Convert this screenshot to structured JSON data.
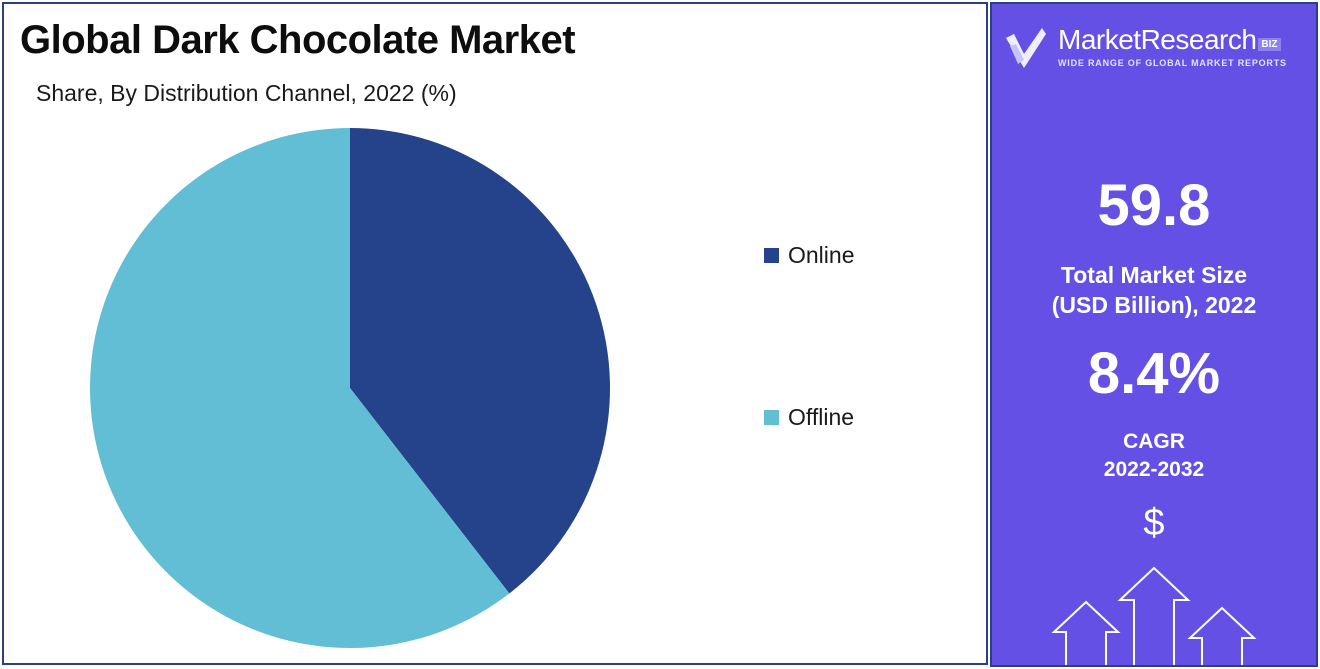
{
  "header": {
    "title": "Global Dark Chocolate Market",
    "subtitle": "Share, By Distribution Channel, 2022 (%)"
  },
  "chart_data": {
    "type": "pie",
    "title": "Global Dark Chocolate Market",
    "subtitle": "Share, By Distribution Channel, 2022 (%)",
    "categories": [
      "Online",
      "Offline"
    ],
    "values": [
      39.5,
      60.5
    ],
    "colors": [
      "#24438b",
      "#62bed4"
    ],
    "legend_position": "right"
  },
  "brand": {
    "name": "MarketResearch",
    "badge": "BIZ",
    "tagline": "WIDE RANGE OF GLOBAL MARKET REPORTS"
  },
  "stats": {
    "market_size_value": "59.8",
    "market_size_label_line1": "Total Market Size",
    "market_size_label_line2": "(USD Billion), 2022",
    "cagr_value": "8.4%",
    "cagr_label_line1": "CAGR",
    "cagr_label_line2": "2022-2032",
    "currency_symbol": "$"
  },
  "colors": {
    "panel_background": "#6550e6",
    "border": "#2b3f85"
  }
}
